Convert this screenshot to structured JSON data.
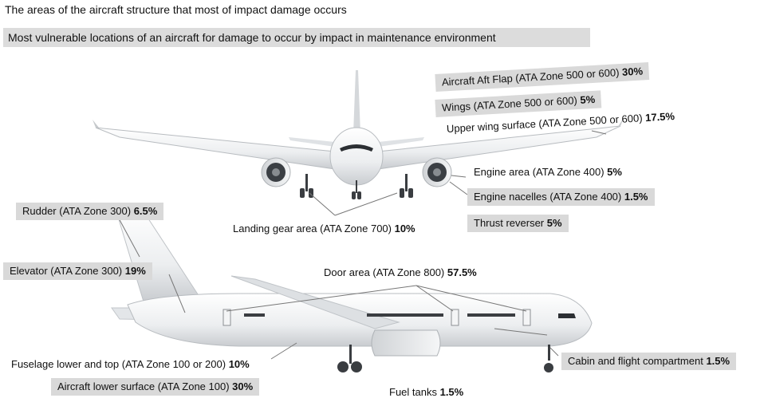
{
  "title": "The areas of the aircraft structure that most of impact damage occurs",
  "subtitle": "Most vulnerable locations of an aircraft for damage to occur by impact in maintenance environment",
  "labels": {
    "aft_flap": {
      "text": "Aircraft Aft Flap (ATA Zone 500 or 600) ",
      "pct": "30%"
    },
    "wings": {
      "text": "Wings (ATA Zone 500 or 600) ",
      "pct": "5%"
    },
    "upper_wing": {
      "text": "Upper wing surface (ATA Zone 500 or 600) ",
      "pct": "17.5%"
    },
    "engine_area": {
      "text": "Engine area (ATA Zone 400) ",
      "pct": "5%"
    },
    "engine_nacelles": {
      "text": "Engine nacelles (ATA Zone 400) ",
      "pct": "1.5%"
    },
    "thrust_reverser": {
      "text": "Thrust reverser ",
      "pct": "5%"
    },
    "rudder": {
      "text": "Rudder (ATA Zone 300) ",
      "pct": "6.5%"
    },
    "landing_gear": {
      "text": "Landing gear area (ATA Zone 700) ",
      "pct": "10%"
    },
    "elevator": {
      "text": "Elevator (ATA Zone 300) ",
      "pct": "19%"
    },
    "door_area": {
      "text": "Door area (ATA Zone 800) ",
      "pct": "57.5%"
    },
    "fuselage": {
      "text": "Fuselage lower and top (ATA Zone 100 or 200) ",
      "pct": "10%"
    },
    "cabin": {
      "text": "Cabin and flight compartment ",
      "pct": "1.5%"
    },
    "lower_surface": {
      "text": "Aircraft lower surface (ATA Zone 100) ",
      "pct": "30%"
    },
    "fuel_tanks": {
      "text": "Fuel tanks ",
      "pct": "1.5%"
    }
  },
  "colors": {
    "label_box": "#d9d9d9",
    "aircraft": "#eef0f2",
    "leader_line": "#777777"
  }
}
